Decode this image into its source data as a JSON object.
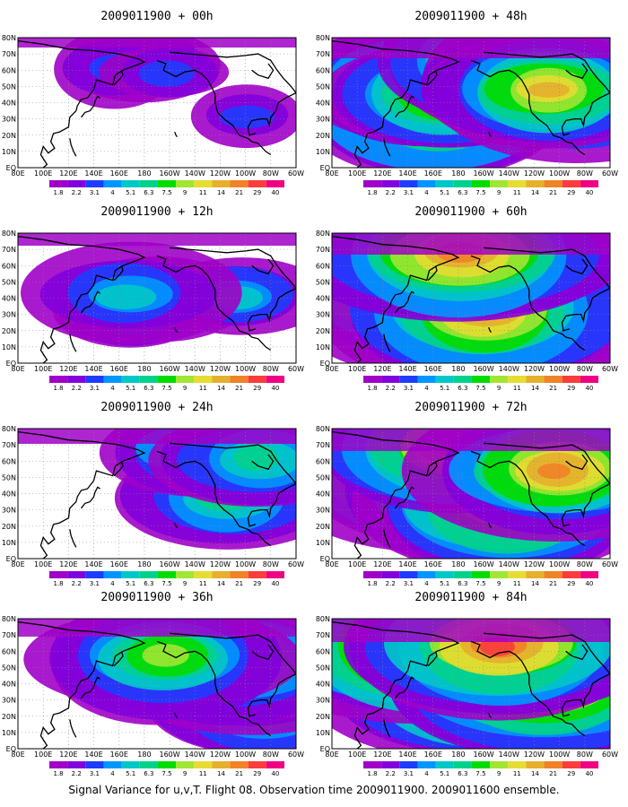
{
  "caption": "Signal Variance for u,v,T. Flight 08. Observation time 2009011900. 2009011600 ensemble.",
  "colorbar": {
    "levels": [
      "1.8",
      "2.2",
      "3.1",
      "4",
      "5.1",
      "6.3",
      "7.5",
      "9",
      "11",
      "14",
      "21",
      "29",
      "40"
    ],
    "colors": [
      "#a000c8",
      "#8200dc",
      "#1e3cff",
      "#0096ff",
      "#00c8c8",
      "#00d28c",
      "#00dc00",
      "#a0e632",
      "#e6dc32",
      "#e6af2d",
      "#f08228",
      "#fa3c3c",
      "#f00082"
    ],
    "background": "#ffffff"
  },
  "axes": {
    "x_ticks": [
      "80E",
      "100E",
      "120E",
      "140E",
      "160E",
      "180",
      "160W",
      "140W",
      "120W",
      "100W",
      "80W",
      "60W"
    ],
    "y_ticks": [
      "80N",
      "70N",
      "60N",
      "50N",
      "40N",
      "30N",
      "20N",
      "10N",
      "EQ"
    ],
    "grid": "dotted"
  },
  "chart_data": [
    {
      "type": "heatmap",
      "title": "2009011900 + 00h",
      "field_intensity": 0.15
    },
    {
      "type": "heatmap",
      "title": "2009011900 + 48h",
      "field_intensity": 0.75
    },
    {
      "type": "heatmap",
      "title": "2009011900 + 12h",
      "field_intensity": 0.3
    },
    {
      "type": "heatmap",
      "title": "2009011900 + 60h",
      "field_intensity": 0.8
    },
    {
      "type": "heatmap",
      "title": "2009011900 + 24h",
      "field_intensity": 0.45
    },
    {
      "type": "heatmap",
      "title": "2009011900 + 72h",
      "field_intensity": 0.85
    },
    {
      "type": "heatmap",
      "title": "2009011900 + 36h",
      "field_intensity": 0.6
    },
    {
      "type": "heatmap",
      "title": "2009011900 + 84h",
      "field_intensity": 0.9
    }
  ]
}
